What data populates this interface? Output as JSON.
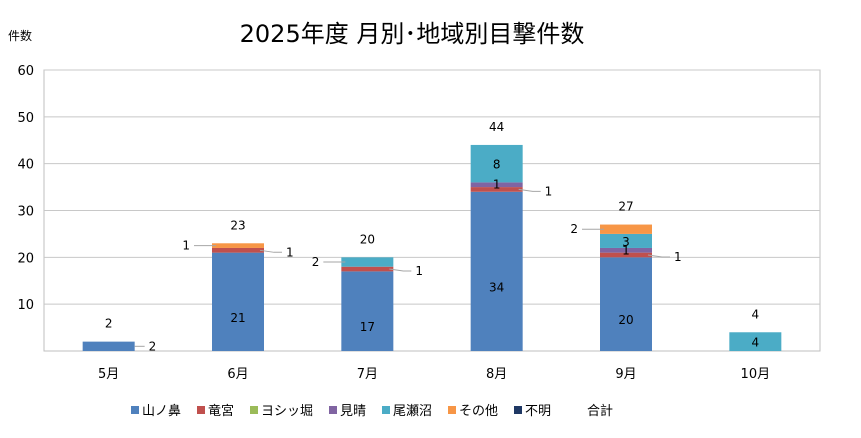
{
  "chart_data": {
    "type": "bar",
    "stacked": true,
    "title": "2025年度 月別･地域別目撃件数",
    "ylabel": "件数",
    "xlabel": "",
    "ylim": [
      0,
      60
    ],
    "yticks": [
      10,
      20,
      30,
      40,
      50,
      60
    ],
    "grid": true,
    "legend_position": "bottom",
    "categories": [
      "5月",
      "6月",
      "7月",
      "8月",
      "9月",
      "10月"
    ],
    "series": [
      {
        "name": "山ノ鼻",
        "color": "#4F81BD",
        "values": [
          2,
          21,
          17,
          34,
          20,
          0
        ]
      },
      {
        "name": "竜宮",
        "color": "#C0504D",
        "values": [
          0,
          1,
          1,
          1,
          1,
          0
        ]
      },
      {
        "name": "ヨシッ堀",
        "color": "#9BBB59",
        "values": [
          0,
          0,
          0,
          0,
          0,
          0
        ]
      },
      {
        "name": "見晴",
        "color": "#8064A2",
        "values": [
          0,
          0,
          0,
          1,
          1,
          0
        ]
      },
      {
        "name": "尾瀬沼",
        "color": "#4BACC6",
        "values": [
          0,
          0,
          2,
          8,
          3,
          4
        ]
      },
      {
        "name": "その他",
        "color": "#F79646",
        "values": [
          0,
          1,
          0,
          0,
          2,
          0
        ]
      },
      {
        "name": "不明",
        "color": "#1F3864",
        "values": [
          0,
          0,
          0,
          0,
          0,
          0
        ]
      }
    ],
    "totals_name": "合計",
    "totals": [
      2,
      23,
      20,
      44,
      27,
      4
    ]
  }
}
